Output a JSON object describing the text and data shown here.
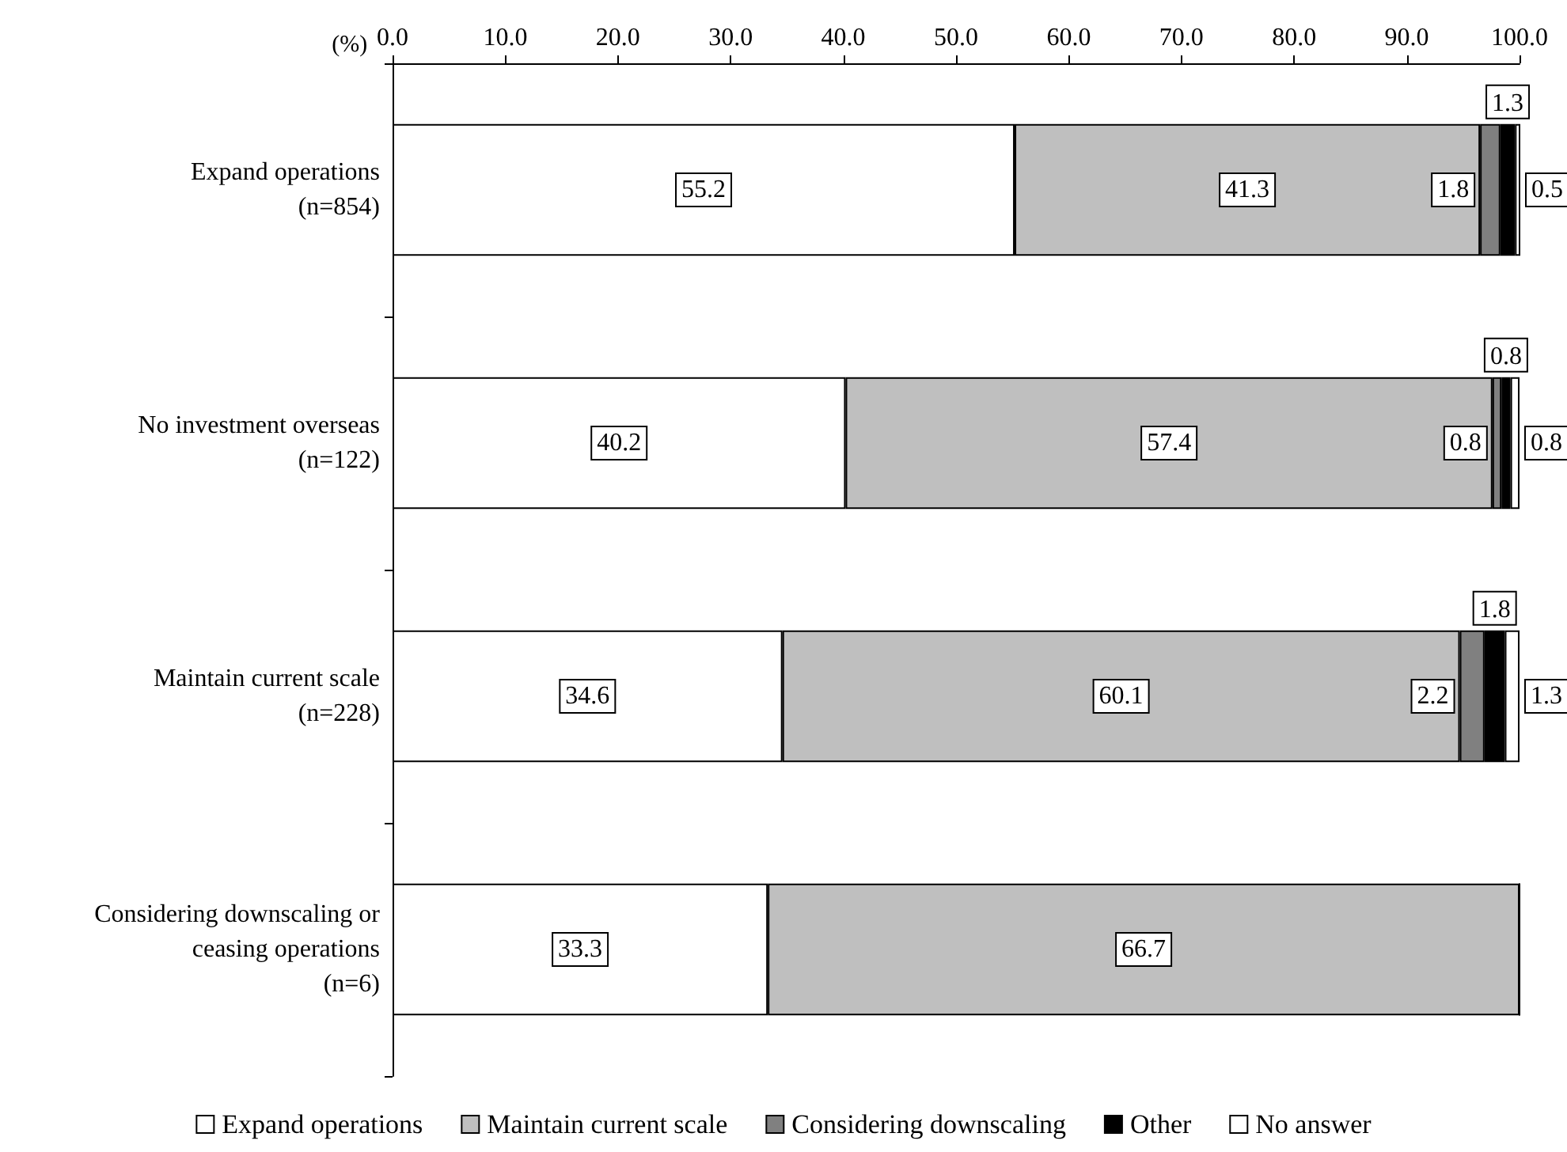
{
  "chart_data": {
    "type": "bar",
    "orientation": "horizontal",
    "stacked": true,
    "xlabel": "(%)",
    "categories": [
      "Expand operations\n(n=854)",
      "No investment overseas\n(n=122)",
      "Maintain current scale\n(n=228)",
      "Considering downscaling or\nceasing operations\n(n=6)"
    ],
    "series": [
      {
        "name": "Expand operations",
        "color": "#ffffff",
        "values": [
          55.2,
          40.2,
          34.6,
          33.3
        ],
        "value_labels": [
          "55.2",
          "40.2",
          "34.6",
          "33.3"
        ]
      },
      {
        "name": "Maintain current scale",
        "color": "#bfbfbf",
        "values": [
          41.3,
          57.4,
          60.1,
          66.7
        ],
        "value_labels": [
          "41.3",
          "57.4",
          "60.1",
          "66.7"
        ]
      },
      {
        "name": "Considering downscaling",
        "color": "#808080",
        "values": [
          1.8,
          0.8,
          2.2,
          0
        ],
        "value_labels": [
          "1.8",
          "0.8",
          "2.2",
          null
        ]
      },
      {
        "name": "Other",
        "color": "#000000",
        "values": [
          1.3,
          0.8,
          1.8,
          0
        ],
        "value_labels": [
          "1.3",
          "0.8",
          "1.8",
          null
        ]
      },
      {
        "name": "No answer",
        "color": "#ffffff",
        "values": [
          0.5,
          0.8,
          1.3,
          0
        ],
        "value_labels": [
          "0.5",
          "0.8",
          "1.3",
          null
        ]
      }
    ],
    "xlim": [
      0,
      100
    ],
    "xticks": [
      {
        "value": 0,
        "label": "0.0"
      },
      {
        "value": 10,
        "label": "10.0"
      },
      {
        "value": 20,
        "label": "20.0"
      },
      {
        "value": 30,
        "label": "30.0"
      },
      {
        "value": 40,
        "label": "40.0"
      },
      {
        "value": 50,
        "label": "50.0"
      },
      {
        "value": 60,
        "label": "60.0"
      },
      {
        "value": 70,
        "label": "70.0"
      },
      {
        "value": 80,
        "label": "80.0"
      },
      {
        "value": 90,
        "label": "90.0"
      },
      {
        "value": 100,
        "label": "100.0"
      }
    ],
    "grid": false,
    "legend": "bottom"
  }
}
